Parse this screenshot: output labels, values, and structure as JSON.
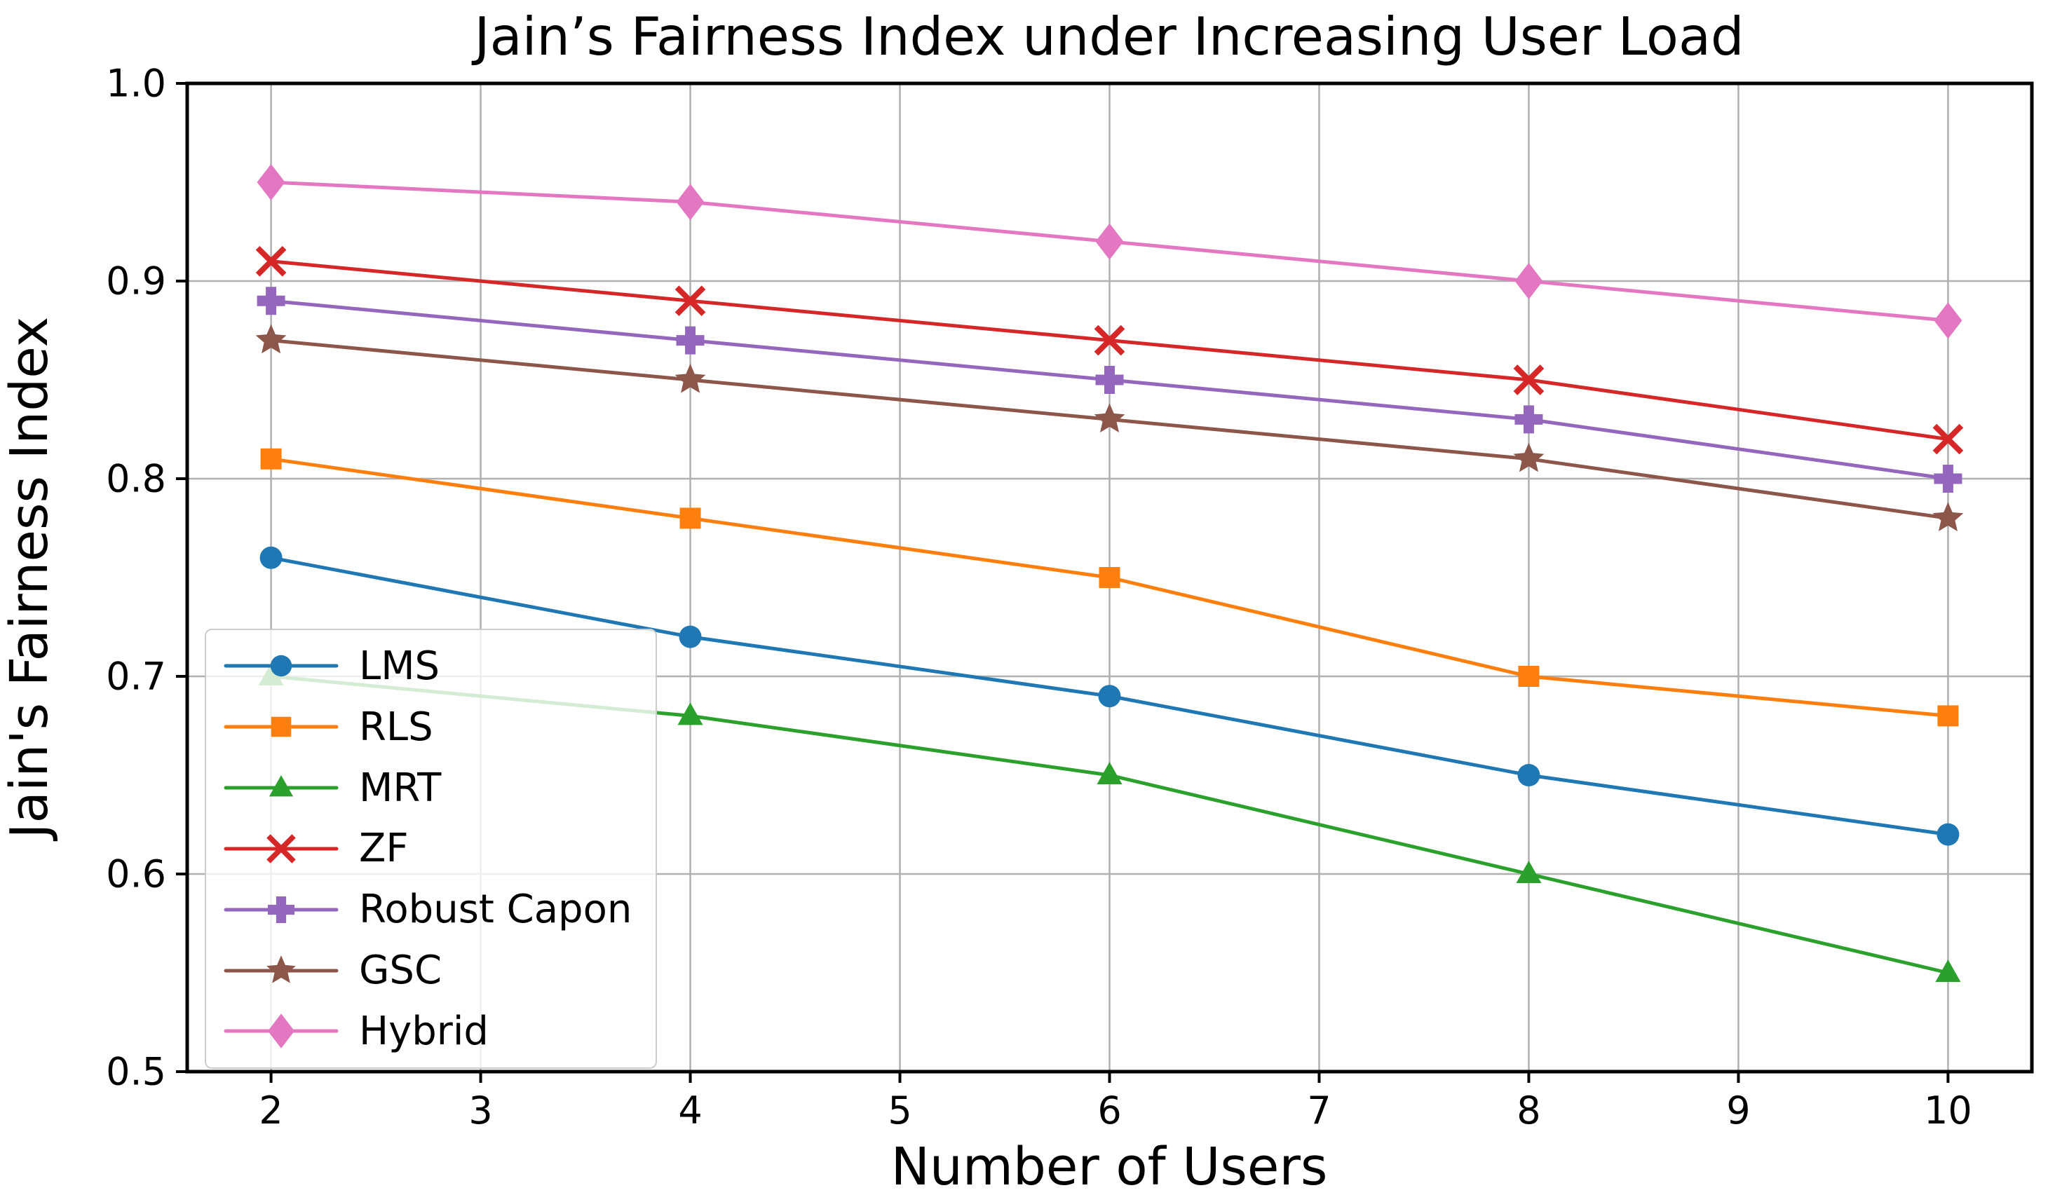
{
  "figure": {
    "background_color": "#ffffff",
    "text_color": "#000000"
  },
  "chart_data": {
    "type": "line",
    "title": "Jain’s Fairness Index under Increasing User Load",
    "xlabel": "Number of Users",
    "ylabel": "Jain's Fairness Index",
    "x": [
      2,
      4,
      6,
      8,
      10
    ],
    "xtick_values": [
      2,
      3,
      4,
      5,
      6,
      7,
      8,
      9,
      10
    ],
    "xticks": [
      "2",
      "3",
      "4",
      "5",
      "6",
      "7",
      "8",
      "9",
      "10"
    ],
    "ytick_values": [
      0.5,
      0.6,
      0.7,
      0.8,
      0.9,
      1.0
    ],
    "yticks": [
      "0.5",
      "0.6",
      "0.7",
      "0.8",
      "0.9",
      "1.0"
    ],
    "xlim": [
      1.6,
      10.4
    ],
    "ylim": [
      0.5,
      1.0
    ],
    "grid": true,
    "grid_color": "#b0b0b0",
    "axis_color": "#000000",
    "legend_position": "center left",
    "series": [
      {
        "name": "LMS",
        "color": "#1f77b4",
        "marker": "circle",
        "values": [
          0.76,
          0.72,
          0.69,
          0.65,
          0.62
        ]
      },
      {
        "name": "RLS",
        "color": "#ff7f0e",
        "marker": "square",
        "values": [
          0.81,
          0.78,
          0.75,
          0.7,
          0.68
        ]
      },
      {
        "name": "MRT",
        "color": "#2ca02c",
        "marker": "triangle-up",
        "values": [
          0.7,
          0.68,
          0.65,
          0.6,
          0.55
        ]
      },
      {
        "name": "ZF",
        "color": "#d62728",
        "marker": "x",
        "values": [
          0.91,
          0.89,
          0.87,
          0.85,
          0.82
        ]
      },
      {
        "name": "Robust Capon",
        "color": "#9467bd",
        "marker": "plus",
        "values": [
          0.89,
          0.87,
          0.85,
          0.83,
          0.8
        ]
      },
      {
        "name": "GSC",
        "color": "#8c564b",
        "marker": "star",
        "values": [
          0.87,
          0.85,
          0.83,
          0.81,
          0.78
        ]
      },
      {
        "name": "Hybrid",
        "color": "#e377c2",
        "marker": "diamond",
        "values": [
          0.95,
          0.94,
          0.92,
          0.9,
          0.88
        ]
      }
    ]
  }
}
